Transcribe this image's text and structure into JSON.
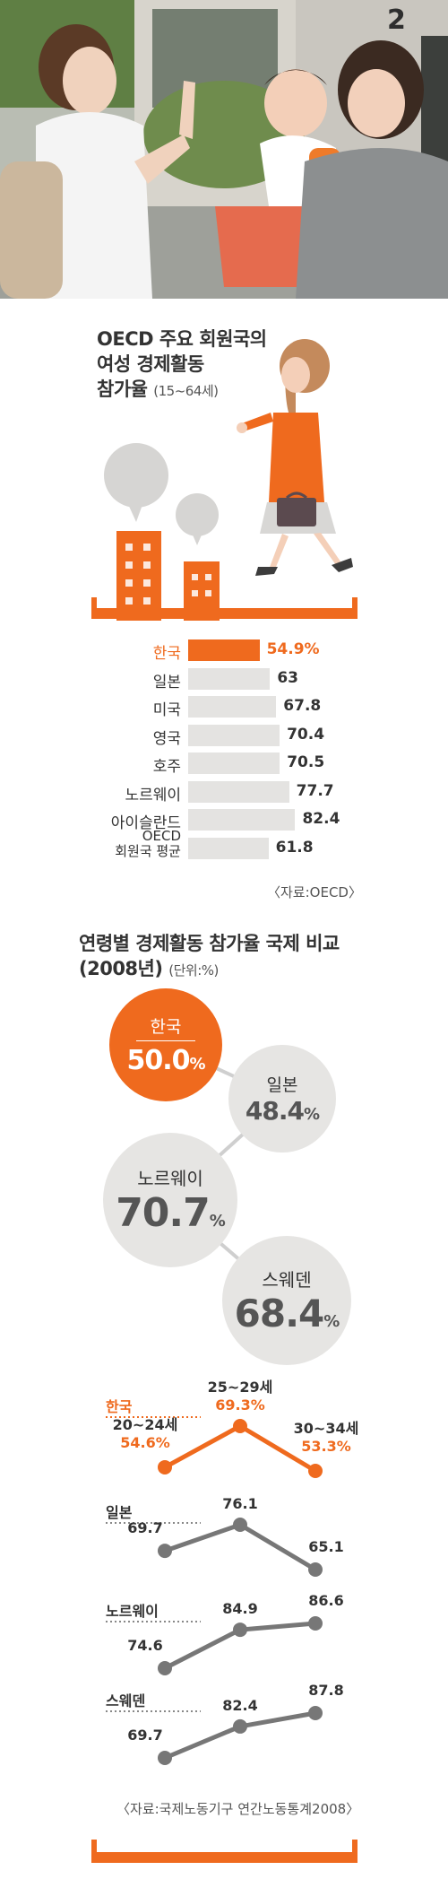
{
  "page_number": "2",
  "chart1": {
    "title_line1": "OECD 주요 회원국의",
    "title_line2": "여성 경제활동",
    "title_line3": "참가율",
    "title_sub": "(15~64세)",
    "source": "〈자료:OECD〉"
  },
  "chart2": {
    "title_line1": "연령별 경제활동 참가율 국제 비교",
    "title_line2": "(2008년)",
    "title_sub": "(단위:%)"
  },
  "chart3": {
    "source": "〈자료:국제노동기구 연간노동통계2008〉"
  },
  "colors": {
    "accent": "#ef6a1e",
    "bar": "#e4e3e1",
    "line_gray": "#777777",
    "circle_gray": "#e6e5e3"
  },
  "chart_data": [
    {
      "type": "bar",
      "orientation": "horizontal",
      "title": "OECD 주요 회원국의 여성 경제활동 참가율 (15~64세)",
      "categories": [
        "한국",
        "일본",
        "미국",
        "영국",
        "호주",
        "노르웨이",
        "아이슬란드",
        "OECD 회원국 평균"
      ],
      "category_lines": [
        [
          "한국"
        ],
        [
          "일본"
        ],
        [
          "미국"
        ],
        [
          "영국"
        ],
        [
          "호주"
        ],
        [
          "노르웨이"
        ],
        [
          "아이슬란드"
        ],
        [
          "OECD",
          "회원국 평균"
        ]
      ],
      "values": [
        54.9,
        63,
        67.8,
        70.4,
        70.5,
        77.7,
        82.4,
        61.8
      ],
      "value_labels": [
        "54.9%",
        "63",
        "67.8",
        "70.4",
        "70.5",
        "77.7",
        "82.4",
        "61.8"
      ],
      "highlight": "한국",
      "xlim": [
        0,
        100
      ]
    },
    {
      "type": "bubble",
      "title": "연령별 경제활동 참가율 국제 비교 (2008년)",
      "unit": "%",
      "categories": [
        "한국",
        "일본",
        "노르웨이",
        "스웨덴"
      ],
      "values": [
        50.0,
        48.4,
        70.7,
        68.4
      ],
      "value_labels": [
        "50.0",
        "48.4",
        "70.7",
        "68.4"
      ],
      "highlight": "한국"
    },
    {
      "type": "line",
      "x": [
        "20~24세",
        "25~29세",
        "30~34세"
      ],
      "series": [
        {
          "name": "한국",
          "values": [
            54.6,
            69.3,
            53.3
          ],
          "labels": [
            "54.6%",
            "69.3%",
            "53.3%"
          ]
        },
        {
          "name": "일본",
          "values": [
            69.7,
            76.1,
            65.1
          ],
          "labels": [
            "69.7",
            "76.1",
            "65.1"
          ]
        },
        {
          "name": "노르웨이",
          "values": [
            74.6,
            84.9,
            86.6
          ],
          "labels": [
            "74.6",
            "84.9",
            "86.6"
          ]
        },
        {
          "name": "스웨덴",
          "values": [
            69.7,
            82.4,
            87.8
          ],
          "labels": [
            "69.7",
            "82.4",
            "87.8"
          ]
        }
      ]
    }
  ]
}
